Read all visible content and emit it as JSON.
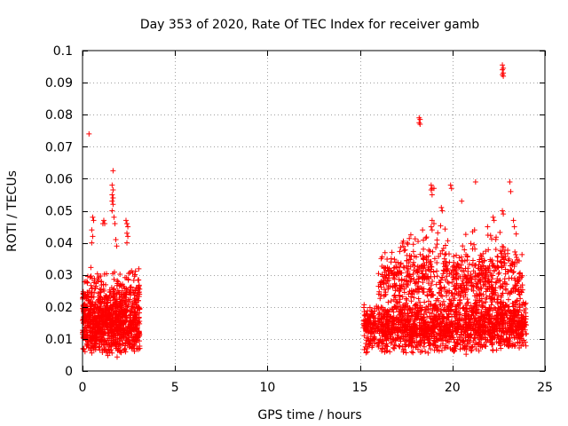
{
  "chart_data": {
    "type": "scatter",
    "title": "Day 353 of 2020, Rate Of TEC Index for receiver gamb",
    "xlabel": "GPS time / hours",
    "ylabel": "ROTI / TECUs",
    "xlim": [
      0,
      25
    ],
    "ylim": [
      0,
      0.1
    ],
    "x_ticks": [
      0,
      5,
      10,
      15,
      20,
      25
    ],
    "x_tick_labels": [
      "0",
      "5",
      "10",
      "15",
      "20",
      "25"
    ],
    "y_ticks": [
      0,
      0.01,
      0.02,
      0.03,
      0.04,
      0.05,
      0.06,
      0.07,
      0.08,
      0.09,
      0.1
    ],
    "y_tick_labels": [
      "0",
      "0.01",
      "0.02",
      "0.03",
      "0.04",
      "0.05",
      "0.06",
      "0.07",
      "0.08",
      "0.09",
      "0.1"
    ],
    "grid": true,
    "marker": "+",
    "color": "#ff0000",
    "series": [
      {
        "name": "ROTI",
        "clusters": [
          {
            "x_range": [
              0.0,
              3.1
            ],
            "y_range": [
              0.004,
              0.025
            ],
            "count": 900
          },
          {
            "x_range": [
              0.0,
              3.1
            ],
            "y_range": [
              0.015,
              0.033
            ],
            "count": 220
          },
          {
            "x_range": [
              15.2,
              24.0
            ],
            "y_range": [
              0.005,
              0.022
            ],
            "count": 1600
          },
          {
            "x_range": [
              16.0,
              23.8
            ],
            "y_range": [
              0.015,
              0.038
            ],
            "count": 700
          },
          {
            "x_range": [
              17.0,
              23.5
            ],
            "y_range": [
              0.025,
              0.046
            ],
            "count": 160
          }
        ],
        "points": [
          [
            0.35,
            0.074
          ],
          [
            0.55,
            0.048
          ],
          [
            0.6,
            0.047
          ],
          [
            0.5,
            0.044
          ],
          [
            0.55,
            0.042
          ],
          [
            0.5,
            0.04
          ],
          [
            1.15,
            0.047
          ],
          [
            1.2,
            0.046
          ],
          [
            1.1,
            0.046
          ],
          [
            1.65,
            0.0625
          ],
          [
            1.6,
            0.058
          ],
          [
            1.65,
            0.0565
          ],
          [
            1.6,
            0.055
          ],
          [
            1.65,
            0.054
          ],
          [
            1.6,
            0.053
          ],
          [
            1.65,
            0.052
          ],
          [
            1.6,
            0.05
          ],
          [
            1.7,
            0.048
          ],
          [
            1.75,
            0.046
          ],
          [
            1.8,
            0.041
          ],
          [
            1.85,
            0.039
          ],
          [
            2.35,
            0.047
          ],
          [
            2.4,
            0.046
          ],
          [
            2.45,
            0.045
          ],
          [
            2.4,
            0.043
          ],
          [
            2.45,
            0.042
          ],
          [
            2.4,
            0.04
          ],
          [
            18.2,
            0.079
          ],
          [
            18.25,
            0.0785
          ],
          [
            18.2,
            0.0775
          ],
          [
            18.25,
            0.077
          ],
          [
            18.85,
            0.058
          ],
          [
            18.9,
            0.057
          ],
          [
            18.85,
            0.0565
          ],
          [
            19.0,
            0.057
          ],
          [
            18.9,
            0.055
          ],
          [
            18.9,
            0.047
          ],
          [
            19.0,
            0.046
          ],
          [
            18.85,
            0.045
          ],
          [
            18.9,
            0.044
          ],
          [
            19.4,
            0.051
          ],
          [
            19.45,
            0.05
          ],
          [
            19.9,
            0.058
          ],
          [
            19.95,
            0.057
          ],
          [
            20.5,
            0.053
          ],
          [
            21.25,
            0.059
          ],
          [
            22.7,
            0.0955
          ],
          [
            22.75,
            0.0945
          ],
          [
            22.7,
            0.094
          ],
          [
            22.75,
            0.093
          ],
          [
            22.7,
            0.0925
          ],
          [
            22.75,
            0.092
          ],
          [
            23.1,
            0.059
          ],
          [
            23.15,
            0.056
          ],
          [
            22.7,
            0.05
          ],
          [
            22.75,
            0.049
          ],
          [
            22.2,
            0.048
          ],
          [
            22.25,
            0.047
          ],
          [
            21.9,
            0.045
          ],
          [
            23.3,
            0.047
          ],
          [
            23.35,
            0.045
          ]
        ]
      }
    ]
  }
}
